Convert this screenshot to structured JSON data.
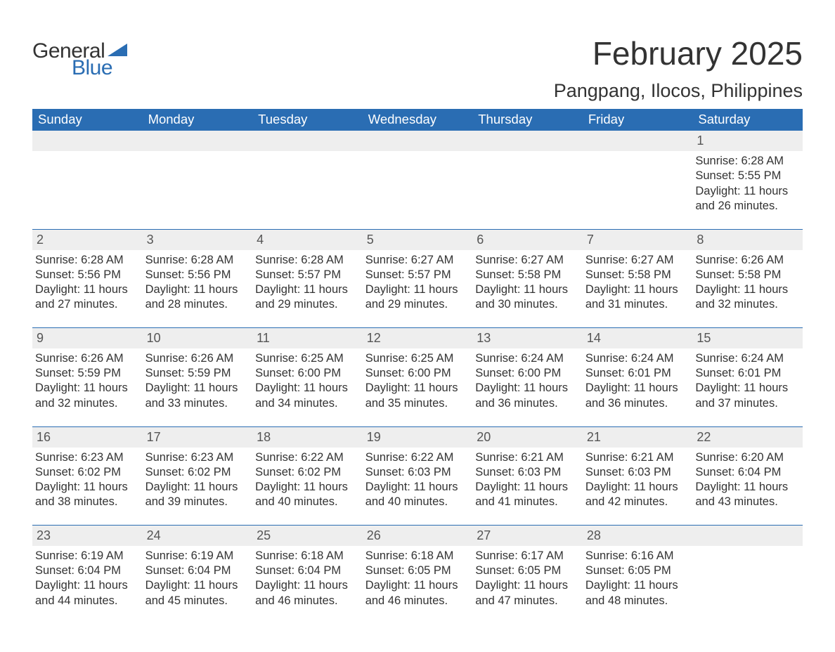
{
  "logo": {
    "word1": "General",
    "word2": "Blue",
    "brand_color": "#2a6db3"
  },
  "title": "February 2025",
  "location": "Pangpang, Ilocos, Philippines",
  "colors": {
    "header_bg": "#2a6db3",
    "header_text": "#ffffff",
    "daynum_bg": "#eeeeee",
    "text": "#333333",
    "rule": "#2a6db3",
    "page_bg": "#ffffff"
  },
  "fonts": {
    "title_size_pt": 34,
    "location_size_pt": 20,
    "header_size_pt": 14,
    "body_size_pt": 12
  },
  "weekday_headers": [
    "Sunday",
    "Monday",
    "Tuesday",
    "Wednesday",
    "Thursday",
    "Friday",
    "Saturday"
  ],
  "start_weekday_index": 6,
  "days": [
    {
      "n": 1,
      "sunrise": "6:28 AM",
      "sunset": "5:55 PM",
      "dl_h": 11,
      "dl_m": 26
    },
    {
      "n": 2,
      "sunrise": "6:28 AM",
      "sunset": "5:56 PM",
      "dl_h": 11,
      "dl_m": 27
    },
    {
      "n": 3,
      "sunrise": "6:28 AM",
      "sunset": "5:56 PM",
      "dl_h": 11,
      "dl_m": 28
    },
    {
      "n": 4,
      "sunrise": "6:28 AM",
      "sunset": "5:57 PM",
      "dl_h": 11,
      "dl_m": 29
    },
    {
      "n": 5,
      "sunrise": "6:27 AM",
      "sunset": "5:57 PM",
      "dl_h": 11,
      "dl_m": 29
    },
    {
      "n": 6,
      "sunrise": "6:27 AM",
      "sunset": "5:58 PM",
      "dl_h": 11,
      "dl_m": 30
    },
    {
      "n": 7,
      "sunrise": "6:27 AM",
      "sunset": "5:58 PM",
      "dl_h": 11,
      "dl_m": 31
    },
    {
      "n": 8,
      "sunrise": "6:26 AM",
      "sunset": "5:58 PM",
      "dl_h": 11,
      "dl_m": 32
    },
    {
      "n": 9,
      "sunrise": "6:26 AM",
      "sunset": "5:59 PM",
      "dl_h": 11,
      "dl_m": 32
    },
    {
      "n": 10,
      "sunrise": "6:26 AM",
      "sunset": "5:59 PM",
      "dl_h": 11,
      "dl_m": 33
    },
    {
      "n": 11,
      "sunrise": "6:25 AM",
      "sunset": "6:00 PM",
      "dl_h": 11,
      "dl_m": 34
    },
    {
      "n": 12,
      "sunrise": "6:25 AM",
      "sunset": "6:00 PM",
      "dl_h": 11,
      "dl_m": 35
    },
    {
      "n": 13,
      "sunrise": "6:24 AM",
      "sunset": "6:00 PM",
      "dl_h": 11,
      "dl_m": 36
    },
    {
      "n": 14,
      "sunrise": "6:24 AM",
      "sunset": "6:01 PM",
      "dl_h": 11,
      "dl_m": 36
    },
    {
      "n": 15,
      "sunrise": "6:24 AM",
      "sunset": "6:01 PM",
      "dl_h": 11,
      "dl_m": 37
    },
    {
      "n": 16,
      "sunrise": "6:23 AM",
      "sunset": "6:02 PM",
      "dl_h": 11,
      "dl_m": 38
    },
    {
      "n": 17,
      "sunrise": "6:23 AM",
      "sunset": "6:02 PM",
      "dl_h": 11,
      "dl_m": 39
    },
    {
      "n": 18,
      "sunrise": "6:22 AM",
      "sunset": "6:02 PM",
      "dl_h": 11,
      "dl_m": 40
    },
    {
      "n": 19,
      "sunrise": "6:22 AM",
      "sunset": "6:03 PM",
      "dl_h": 11,
      "dl_m": 40
    },
    {
      "n": 20,
      "sunrise": "6:21 AM",
      "sunset": "6:03 PM",
      "dl_h": 11,
      "dl_m": 41
    },
    {
      "n": 21,
      "sunrise": "6:21 AM",
      "sunset": "6:03 PM",
      "dl_h": 11,
      "dl_m": 42
    },
    {
      "n": 22,
      "sunrise": "6:20 AM",
      "sunset": "6:04 PM",
      "dl_h": 11,
      "dl_m": 43
    },
    {
      "n": 23,
      "sunrise": "6:19 AM",
      "sunset": "6:04 PM",
      "dl_h": 11,
      "dl_m": 44
    },
    {
      "n": 24,
      "sunrise": "6:19 AM",
      "sunset": "6:04 PM",
      "dl_h": 11,
      "dl_m": 45
    },
    {
      "n": 25,
      "sunrise": "6:18 AM",
      "sunset": "6:04 PM",
      "dl_h": 11,
      "dl_m": 46
    },
    {
      "n": 26,
      "sunrise": "6:18 AM",
      "sunset": "6:05 PM",
      "dl_h": 11,
      "dl_m": 46
    },
    {
      "n": 27,
      "sunrise": "6:17 AM",
      "sunset": "6:05 PM",
      "dl_h": 11,
      "dl_m": 47
    },
    {
      "n": 28,
      "sunrise": "6:16 AM",
      "sunset": "6:05 PM",
      "dl_h": 11,
      "dl_m": 48
    }
  ],
  "labels": {
    "sunrise": "Sunrise",
    "sunset": "Sunset",
    "daylight_prefix": "Daylight",
    "hours_word": "hours",
    "minutes_word": "minutes",
    "and_word": "and"
  }
}
